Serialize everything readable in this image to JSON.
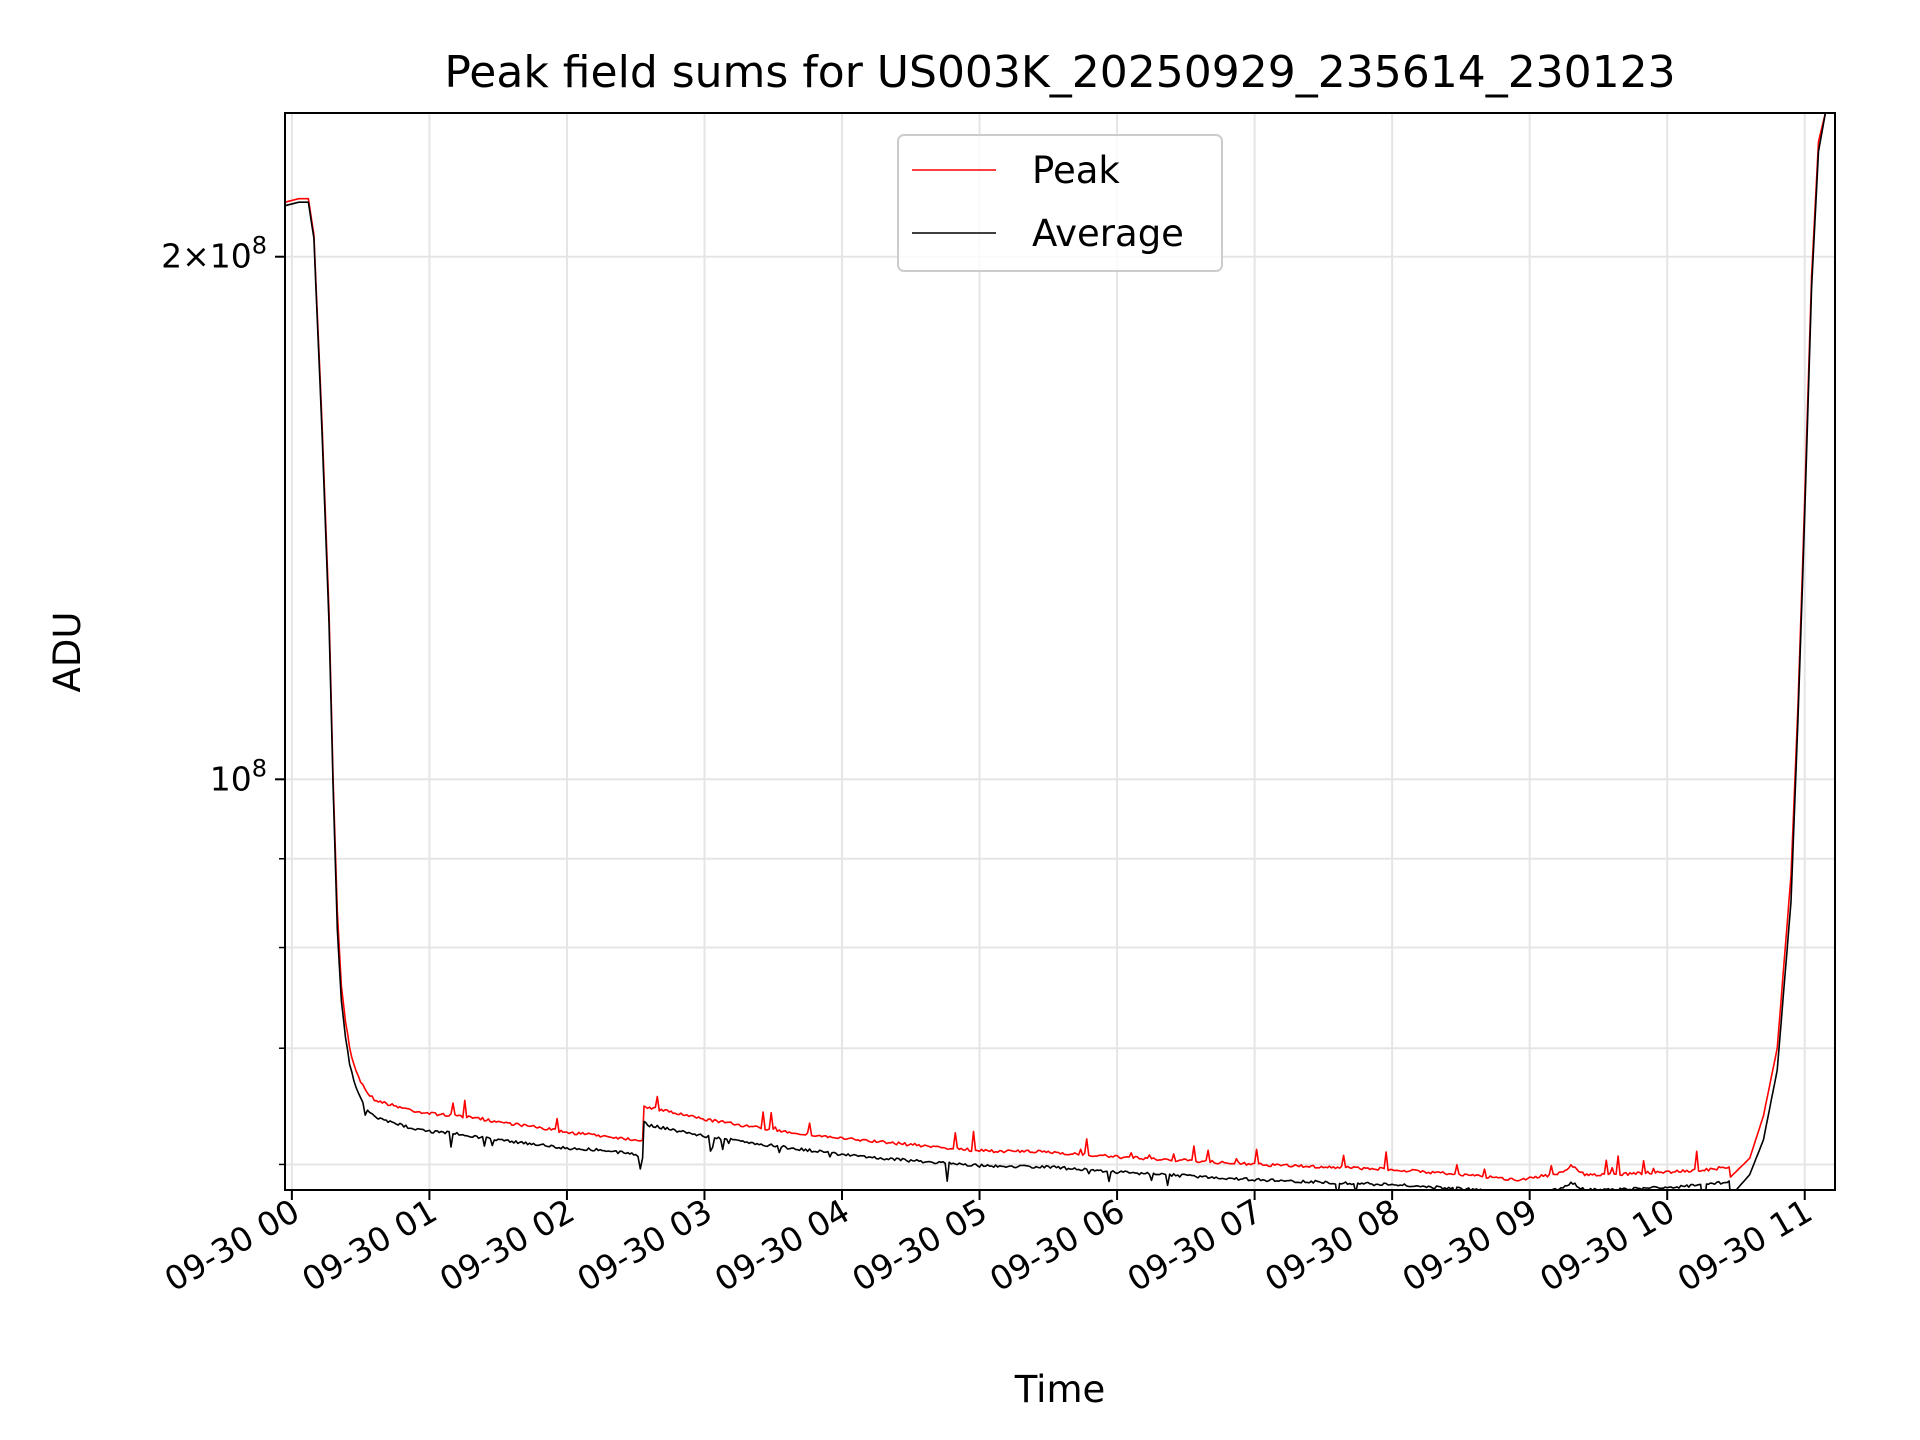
{
  "chart_data": {
    "type": "line",
    "title": "Peak field sums for US003K_20250929_235614_230123",
    "xlabel": "Time",
    "ylabel": "ADU",
    "yscale": "log",
    "ylim": [
      58000000,
      242000000
    ],
    "xlim": [
      -0.05,
      11.22
    ],
    "grid": true,
    "legend": {
      "placement": "top-center",
      "entries": [
        "Peak",
        "Average"
      ]
    },
    "x_ticks": [
      {
        "value": 0,
        "label": "09-30 00"
      },
      {
        "value": 1,
        "label": "09-30 01"
      },
      {
        "value": 2,
        "label": "09-30 02"
      },
      {
        "value": 3,
        "label": "09-30 03"
      },
      {
        "value": 4,
        "label": "09-30 04"
      },
      {
        "value": 5,
        "label": "09-30 05"
      },
      {
        "value": 6,
        "label": "09-30 06"
      },
      {
        "value": 7,
        "label": "09-30 07"
      },
      {
        "value": 8,
        "label": "09-30 08"
      },
      {
        "value": 9,
        "label": "09-30 09"
      },
      {
        "value": 10,
        "label": "09-30 10"
      },
      {
        "value": 11,
        "label": "09-30 11"
      }
    ],
    "y_ticks": [
      {
        "value": 100000000,
        "label": "10",
        "sup": "8"
      },
      {
        "value": 200000000,
        "label": "2×10",
        "sup": "8"
      }
    ],
    "y_minor_ticks": [
      60000000,
      70000000,
      80000000,
      90000000
    ],
    "series": [
      {
        "name": "Peak",
        "color": "#ff0000",
        "x": [
          -0.05,
          0.05,
          0.12,
          0.16,
          0.22,
          0.27,
          0.3,
          0.33,
          0.36,
          0.39,
          0.42,
          0.45,
          0.5,
          0.55,
          0.6,
          0.7,
          0.8,
          0.9,
          1.0,
          1.2,
          1.5,
          1.8,
          2.0,
          2.2,
          2.5,
          2.55,
          2.56,
          2.6,
          3.0,
          3.5,
          4.0,
          4.5,
          5.0,
          5.5,
          6.0,
          6.5,
          7.0,
          7.5,
          8.0,
          8.5,
          8.9,
          9.2,
          9.3,
          9.4,
          9.6,
          10.0,
          10.3,
          10.45,
          10.46,
          10.6,
          10.7,
          10.8,
          10.9,
          10.95,
          11.0,
          11.05,
          11.1,
          11.15
        ],
        "values": [
          215000000,
          216000000,
          216000000,
          206000000,
          160000000,
          125000000,
          100000000,
          84000000,
          76000000,
          72500000,
          70000000,
          68500000,
          67000000,
          66000000,
          65400000,
          65000000,
          64700000,
          64400000,
          64200000,
          64000000,
          63500000,
          63000000,
          62600000,
          62400000,
          62000000,
          62000000,
          64800000,
          64700000,
          63700000,
          62800000,
          62100000,
          61600000,
          61100000,
          61000000,
          60600000,
          60300000,
          60000000,
          59800000,
          59600000,
          59200000,
          58800000,
          59200000,
          59900000,
          59200000,
          59200000,
          59400000,
          59600000,
          59800000,
          59000000,
          60500000,
          64000000,
          70000000,
          88000000,
          110000000,
          145000000,
          195000000,
          233000000,
          242000000
        ]
      },
      {
        "name": "Average",
        "color": "#000000",
        "x": [
          -0.05,
          0.05,
          0.12,
          0.16,
          0.22,
          0.27,
          0.3,
          0.33,
          0.36,
          0.39,
          0.42,
          0.45,
          0.5,
          0.55,
          0.6,
          0.7,
          0.8,
          0.9,
          1.0,
          1.2,
          1.5,
          1.8,
          2.0,
          2.2,
          2.5,
          2.55,
          2.56,
          2.6,
          3.0,
          3.5,
          4.0,
          4.5,
          5.0,
          5.5,
          6.0,
          6.5,
          7.0,
          7.5,
          8.0,
          8.5,
          8.9,
          9.2,
          9.3,
          9.4,
          9.6,
          10.0,
          10.3,
          10.45,
          10.46,
          10.6,
          10.7,
          10.8,
          10.9,
          10.95,
          11.0,
          11.05,
          11.1,
          11.15
        ],
        "values": [
          214000000,
          215000000,
          215000000,
          205000000,
          158000000,
          123000000,
          99000000,
          82000000,
          74500000,
          71000000,
          68500000,
          67000000,
          65500000,
          64500000,
          63900000,
          63500000,
          63200000,
          62900000,
          62700000,
          62500000,
          62000000,
          61600000,
          61300000,
          61200000,
          60800000,
          60500000,
          63400000,
          63200000,
          62300000,
          61500000,
          60800000,
          60300000,
          59900000,
          59800000,
          59400000,
          59100000,
          58800000,
          58600000,
          58400000,
          58100000,
          57700000,
          58000000,
          58600000,
          58000000,
          58000000,
          58200000,
          58400000,
          58700000,
          57500000,
          59200000,
          62000000,
          68000000,
          85000000,
          108000000,
          142000000,
          192000000,
          230000000,
          242000000
        ]
      }
    ]
  }
}
